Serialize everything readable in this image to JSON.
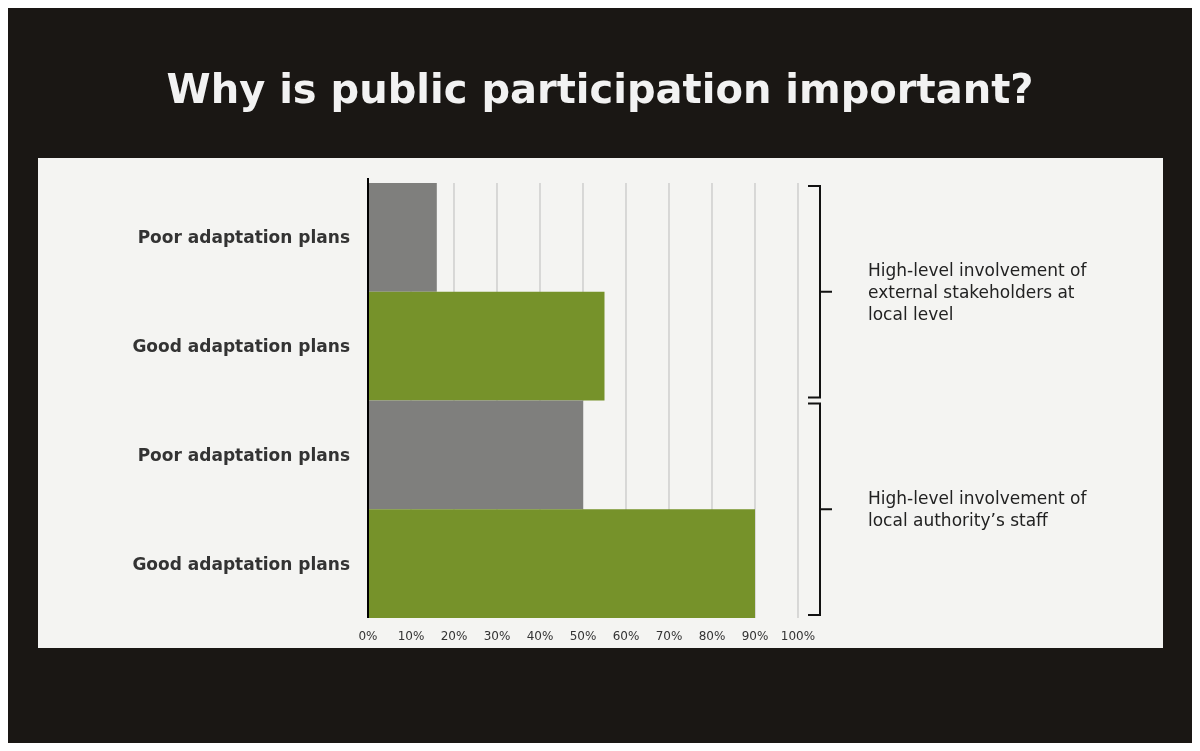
{
  "chart_data": {
    "type": "bar",
    "orientation": "horizontal",
    "title": "Why is public participation important?",
    "categories": [
      "Poor adaptation plans",
      "Good adaptation plans",
      "Poor adaptation plans",
      "Good adaptation plans"
    ],
    "values": [
      16,
      55,
      50,
      90
    ],
    "colors": [
      "#7f7f7d",
      "#76922a",
      "#7f7f7d",
      "#76922a"
    ],
    "xlim": [
      0,
      100
    ],
    "xticks": [
      {
        "value": 0,
        "label": "0%"
      },
      {
        "value": 10,
        "label": "10%"
      },
      {
        "value": 20,
        "label": "20%"
      },
      {
        "value": 30,
        "label": "30%"
      },
      {
        "value": 40,
        "label": "40%"
      },
      {
        "value": 50,
        "label": "50%"
      },
      {
        "value": 60,
        "label": "60%"
      },
      {
        "value": 70,
        "label": "70%"
      },
      {
        "value": 80,
        "label": "80%"
      },
      {
        "value": 90,
        "label": "90%"
      },
      {
        "value": 100,
        "label": "100%"
      }
    ],
    "grid": "x",
    "annotations": [
      "High-level involvement of external stakeholders at local level",
      "High-level involvement of local authority’s staff"
    ]
  }
}
